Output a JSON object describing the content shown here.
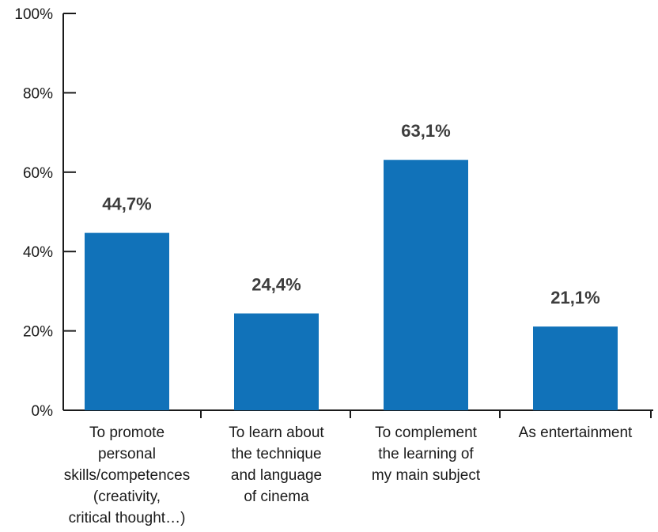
{
  "chart_data": {
    "type": "bar",
    "categories": [
      [
        "To promote",
        "personal",
        "skills/competences",
        "(creativity,",
        "critical thought…)"
      ],
      [
        "To learn about",
        "the technique",
        "and language",
        "of cinema"
      ],
      [
        "To complement",
        "the learning of",
        "my main subject"
      ],
      [
        "As entertainment"
      ]
    ],
    "values": [
      44.7,
      24.4,
      63.1,
      21.1
    ],
    "data_labels": [
      "44,7%",
      "24,4%",
      "63,1%",
      "21,1%"
    ],
    "ylim": [
      0,
      100
    ],
    "yticks": [
      0,
      20,
      40,
      60,
      80,
      100
    ],
    "ytick_labels": [
      "0%",
      "20%",
      "40%",
      "60%",
      "80%",
      "100%"
    ],
    "bar_color": "#1172b9",
    "grid": false,
    "title": "",
    "xlabel": "",
    "ylabel": ""
  }
}
